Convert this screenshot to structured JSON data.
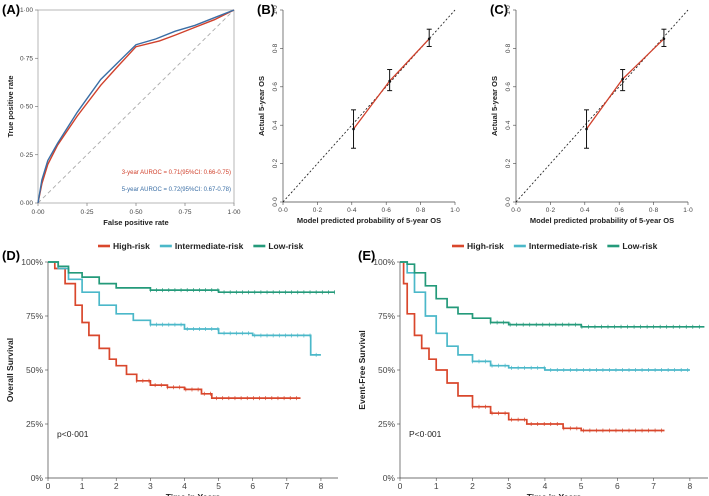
{
  "chart_data": [
    {
      "id": "A",
      "panel_label": "(A)",
      "type": "line",
      "xlabel": "False positive rate",
      "ylabel": "True positive rate",
      "xlim": [
        0,
        1
      ],
      "ylim": [
        0,
        1
      ],
      "xticks": [
        "0·00",
        "0·25",
        "0·50",
        "0·75",
        "1·00"
      ],
      "yticks": [
        "0·00",
        "0·25",
        "0·50",
        "0·75",
        "1·00"
      ],
      "reference_line": true,
      "series": [
        {
          "name": "3-year",
          "color": "#d0412c",
          "x": [
            0,
            0.02,
            0.05,
            0.1,
            0.2,
            0.32,
            0.4,
            0.5,
            0.62,
            0.7,
            0.8,
            0.9,
            1.0
          ],
          "y": [
            0,
            0.1,
            0.2,
            0.3,
            0.45,
            0.61,
            0.7,
            0.81,
            0.84,
            0.87,
            0.91,
            0.95,
            1.0
          ]
        },
        {
          "name": "5-year",
          "color": "#3a6ea5",
          "x": [
            0,
            0.02,
            0.05,
            0.1,
            0.2,
            0.32,
            0.4,
            0.5,
            0.6,
            0.7,
            0.8,
            0.9,
            1.0
          ],
          "y": [
            0,
            0.12,
            0.22,
            0.31,
            0.47,
            0.64,
            0.72,
            0.82,
            0.85,
            0.89,
            0.92,
            0.96,
            1.0
          ]
        }
      ],
      "annotations": [
        {
          "text": "3-year AUROC = 0.71(95%CI: 0.66-0.75)",
          "color": "#d0412c"
        },
        {
          "text": "5-year AUROC = 0.72(95%CI: 0.67-0.78)",
          "color": "#3a6ea5"
        }
      ]
    },
    {
      "id": "B",
      "panel_label": "(B)",
      "type": "scatter",
      "xlabel": "Model predicted probability of 5-year OS",
      "ylabel": "Actual 5-year OS",
      "xlim": [
        0,
        1
      ],
      "ylim": [
        0,
        1
      ],
      "xticks": [
        "0·0",
        "0·2",
        "0·4",
        "0·6",
        "0·8",
        "1·0"
      ],
      "yticks": [
        "0·0",
        "0·2",
        "0·4",
        "0·6",
        "0·8",
        "1·0"
      ],
      "line_color": "#d0412c",
      "points": [
        {
          "x": 0.41,
          "y": 0.38,
          "lo": 0.28,
          "hi": 0.48
        },
        {
          "x": 0.62,
          "y": 0.63,
          "lo": 0.58,
          "hi": 0.69
        },
        {
          "x": 0.85,
          "y": 0.85,
          "lo": 0.81,
          "hi": 0.9
        }
      ]
    },
    {
      "id": "C",
      "panel_label": "(C)",
      "type": "scatter",
      "xlabel": "Model predicted probability of 5-year OS",
      "ylabel": "Actual 5-year OS",
      "xlim": [
        0,
        1
      ],
      "ylim": [
        0,
        1
      ],
      "xticks": [
        "0·0",
        "0·2",
        "0·4",
        "0·6",
        "0·8",
        "1·0"
      ],
      "yticks": [
        "0·0",
        "0·2",
        "0·4",
        "0·6",
        "0·8",
        "1·0"
      ],
      "line_color": "#d0412c",
      "points": [
        {
          "x": 0.41,
          "y": 0.38,
          "lo": 0.28,
          "hi": 0.48
        },
        {
          "x": 0.62,
          "y": 0.64,
          "lo": 0.58,
          "hi": 0.69
        },
        {
          "x": 0.86,
          "y": 0.85,
          "lo": 0.81,
          "hi": 0.9
        }
      ]
    },
    {
      "id": "D",
      "panel_label": "(D)",
      "type": "line",
      "xlabel": "Time in Years",
      "ylabel": "Overall Survival",
      "xlim": [
        0,
        8.5
      ],
      "ylim": [
        0,
        1
      ],
      "xticks": [
        "0",
        "1",
        "2",
        "3",
        "4",
        "5",
        "6",
        "7",
        "8"
      ],
      "yticks": [
        "0%",
        "25%",
        "50%",
        "75%",
        "100%"
      ],
      "pvalue": "p<0·001",
      "series": [
        {
          "name": "High-risk",
          "color": "#d9472c",
          "x": [
            0,
            0.2,
            0.5,
            0.8,
            1.0,
            1.2,
            1.5,
            1.8,
            2.0,
            2.3,
            2.6,
            3.0,
            3.5,
            4.0,
            4.5,
            4.8,
            5.0,
            6.0,
            7.0,
            7.4
          ],
          "y": [
            1,
            0.97,
            0.9,
            0.8,
            0.72,
            0.66,
            0.6,
            0.55,
            0.52,
            0.48,
            0.45,
            0.43,
            0.42,
            0.41,
            0.39,
            0.37,
            0.37,
            0.37,
            0.37,
            0.37
          ]
        },
        {
          "name": "Intermediate-risk",
          "color": "#4bb8c9",
          "x": [
            0,
            0.3,
            0.6,
            1.0,
            1.5,
            2.0,
            2.5,
            3.0,
            4.0,
            5.0,
            6.0,
            7.0,
            7.7,
            7.7,
            8.0
          ],
          "y": [
            1,
            0.97,
            0.92,
            0.86,
            0.8,
            0.76,
            0.73,
            0.71,
            0.69,
            0.67,
            0.66,
            0.66,
            0.66,
            0.57,
            0.57
          ]
        },
        {
          "name": "Low-risk",
          "color": "#249a7a",
          "x": [
            0,
            0.3,
            0.6,
            1.0,
            1.5,
            2.0,
            3.0,
            4.0,
            5.0,
            6.0,
            7.0,
            8.0,
            8.4
          ],
          "y": [
            1,
            0.98,
            0.95,
            0.93,
            0.9,
            0.88,
            0.87,
            0.87,
            0.86,
            0.86,
            0.86,
            0.86,
            0.86
          ]
        }
      ]
    },
    {
      "id": "E",
      "panel_label": "(E)",
      "type": "line",
      "xlabel": "Time in Years",
      "ylabel": "Event-Free Survival",
      "xlim": [
        0,
        8.5
      ],
      "ylim": [
        0,
        1
      ],
      "xticks": [
        "0",
        "1",
        "2",
        "3",
        "4",
        "5",
        "6",
        "7",
        "8"
      ],
      "yticks": [
        "0%",
        "25%",
        "50%",
        "75%",
        "100%"
      ],
      "pvalue": "P<0·001",
      "series": [
        {
          "name": "High-risk",
          "color": "#d9472c",
          "x": [
            0,
            0.1,
            0.2,
            0.4,
            0.6,
            0.8,
            1.0,
            1.3,
            1.6,
            2.0,
            2.5,
            3.0,
            3.5,
            4.0,
            4.5,
            5.0,
            6.0,
            7.0,
            7.3
          ],
          "y": [
            1,
            0.9,
            0.76,
            0.66,
            0.6,
            0.55,
            0.5,
            0.44,
            0.38,
            0.33,
            0.3,
            0.27,
            0.25,
            0.25,
            0.23,
            0.22,
            0.22,
            0.22,
            0.22
          ]
        },
        {
          "name": "Intermediate-risk",
          "color": "#4bb8c9",
          "x": [
            0,
            0.2,
            0.4,
            0.7,
            1.0,
            1.3,
            1.6,
            2.0,
            2.5,
            3.0,
            4.0,
            5.0,
            6.0,
            7.0,
            8.0
          ],
          "y": [
            1,
            0.95,
            0.86,
            0.75,
            0.67,
            0.61,
            0.57,
            0.54,
            0.52,
            0.51,
            0.5,
            0.5,
            0.5,
            0.5,
            0.5
          ]
        },
        {
          "name": "Low-risk",
          "color": "#249a7a",
          "x": [
            0,
            0.2,
            0.4,
            0.7,
            1.0,
            1.3,
            1.6,
            2.0,
            2.5,
            3.0,
            4.0,
            5.0,
            6.0,
            7.0,
            8.0,
            8.4
          ],
          "y": [
            1,
            0.99,
            0.95,
            0.89,
            0.83,
            0.79,
            0.76,
            0.74,
            0.72,
            0.71,
            0.71,
            0.7,
            0.7,
            0.7,
            0.7,
            0.7
          ]
        }
      ]
    }
  ]
}
